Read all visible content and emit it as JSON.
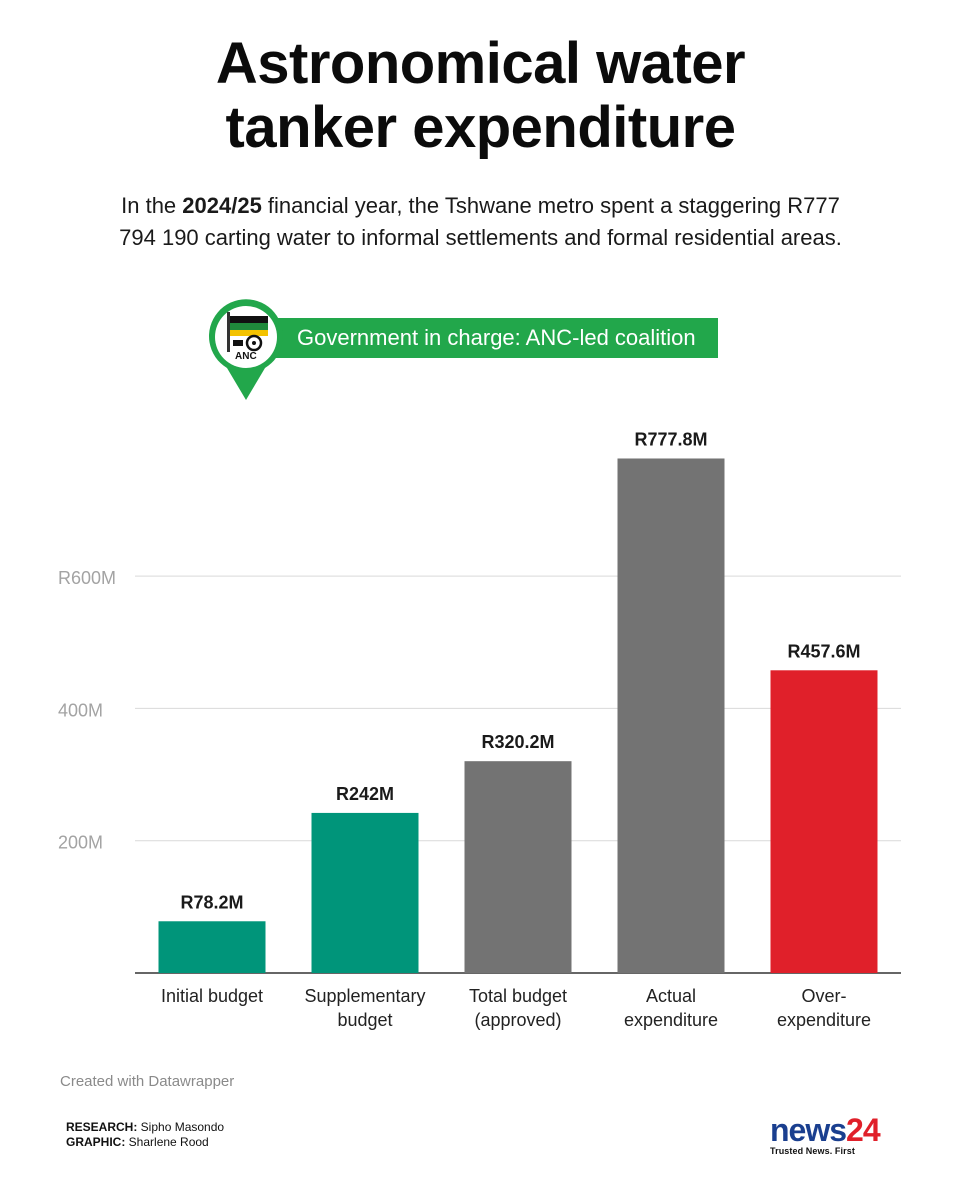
{
  "header": {
    "title_line1": "Astronomical water",
    "title_line2": "tanker expenditure",
    "subtitle_before": "In the ",
    "subtitle_bold": "2024/25",
    "subtitle_after": " financial year, the Tshwane metro spent a staggering R777 794 190 carting water to informal settlements and formal residential areas."
  },
  "government": {
    "label": "Government in charge: ANC-led coalition",
    "logo_text": "ANC",
    "colors": {
      "badge": "#22a74b",
      "flag_green": "#1f8a3b",
      "flag_yellow": "#f3c200",
      "flag_black": "#111111"
    }
  },
  "chart_data": {
    "type": "bar",
    "categories": [
      "Initial budget",
      "Supplementary budget",
      "Total budget (approved)",
      "Actual expenditure",
      "Over-expenditure"
    ],
    "category_lines": [
      [
        "Initial budget"
      ],
      [
        "Supplementary",
        "budget"
      ],
      [
        "Total budget",
        "(approved)"
      ],
      [
        "Actual",
        "expenditure"
      ],
      [
        "Over-",
        "expenditure"
      ]
    ],
    "values": [
      78.2,
      242,
      320.2,
      777.8,
      457.6
    ],
    "value_labels": [
      "R78.2M",
      "R242M",
      "R320.2M",
      "R777.8M",
      "R457.6M"
    ],
    "colors": [
      "#00957a",
      "#00957a",
      "#737373",
      "#737373",
      "#e0202a"
    ],
    "unit": "R million",
    "yticks": [
      200,
      400,
      600
    ],
    "ytick_labels": [
      "200M",
      "400M",
      "R600M"
    ],
    "ylim": [
      0,
      780
    ],
    "grid": true,
    "xlabel": "",
    "ylabel": ""
  },
  "footer": {
    "credit": "Created with Datawrapper",
    "research_label": "RESEARCH:",
    "research_name": " Sipho Masondo",
    "graphic_label": "GRAPHIC:",
    "graphic_name": " Sharlene Rood",
    "logo_news": "news",
    "logo_num": "24",
    "logo_tagline": "Trusted News. First"
  }
}
